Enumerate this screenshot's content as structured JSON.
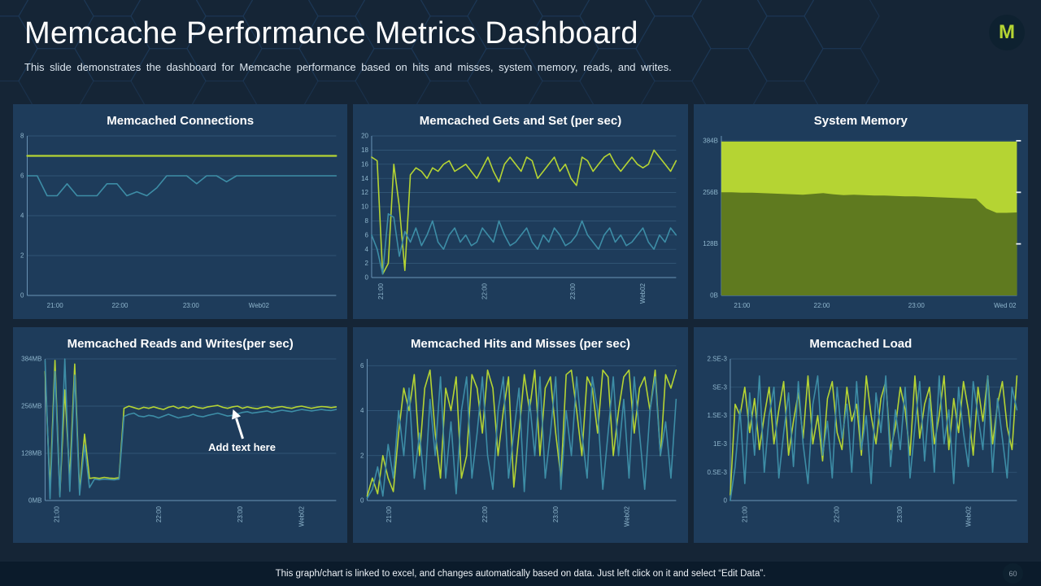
{
  "header": {
    "title": "Memcache Performance Metrics Dashboard",
    "subtitle": "This slide demonstrates the dashboard for Memcache performance based on hits and misses, system memory, reads, and writes.",
    "logo_letter": "M"
  },
  "footer": {
    "note": "This graph/chart is linked to excel, and changes automatically based on data. Just left click on it and select “Edit Data”.",
    "page_number": "60"
  },
  "colors": {
    "background": "#152536",
    "panel": "#1e3c5b",
    "accent_green": "#b5d433",
    "line_teal": "#3d8da6",
    "area_olive": "#5f7a1f",
    "grid": "#3b6384",
    "axis": "#6a93b5",
    "axis_label": "#8fb6cd",
    "footer_bg": "#0b1b2b"
  },
  "chart_data": [
    {
      "type": "line",
      "title": "Memcached Connections",
      "ylim": [
        0,
        8
      ],
      "yticks": [
        0,
        2,
        4,
        6,
        8
      ],
      "ytick_labels": [
        "0",
        "2",
        "4",
        "6",
        "8"
      ],
      "xtick_labels": [
        "21:00",
        "22:00",
        "23:00",
        "Web02"
      ],
      "xtick_pos": [
        0.09,
        0.3,
        0.53,
        0.75
      ],
      "x_rotated": false,
      "grid": "horizontal",
      "legend": "none",
      "series": [
        {
          "name": "green-line",
          "color": "#b5d433",
          "width": 2.2,
          "values": [
            7,
            7,
            7,
            7,
            7,
            7,
            7,
            7
          ]
        },
        {
          "name": "teal-line",
          "color": "#3d8da6",
          "values": [
            6,
            6,
            5,
            5,
            5.6,
            5,
            5,
            5,
            5.6,
            5.6,
            5,
            5.2,
            5,
            5.4,
            6,
            6,
            6,
            5.6,
            6,
            6,
            5.7,
            6,
            6,
            6,
            6,
            6,
            6,
            6,
            6,
            6,
            6,
            6
          ]
        }
      ]
    },
    {
      "type": "line",
      "title": "Memcached Gets and Set (per sec)",
      "ylim": [
        0,
        20
      ],
      "yticks": [
        0,
        2,
        4,
        6,
        8,
        10,
        12,
        14,
        16,
        18,
        20
      ],
      "ytick_labels": [
        "0",
        "2",
        "4",
        "6",
        "8",
        "10",
        "12",
        "14",
        "16",
        "18",
        "20"
      ],
      "xtick_labels": [
        "21:00",
        "22:00",
        "23:00",
        "Web02"
      ],
      "xtick_pos": [
        0.03,
        0.37,
        0.66,
        0.89
      ],
      "x_rotated": true,
      "grid": "horizontal",
      "legend": "none",
      "series": [
        {
          "name": "gets",
          "color": "#b5d433",
          "values": [
            17,
            16.5,
            0.5,
            2,
            16,
            10,
            1,
            14.5,
            15.5,
            15,
            14,
            15.5,
            15,
            16,
            16.5,
            15,
            15.5,
            16,
            15,
            14,
            15.5,
            17,
            15,
            13.5,
            16,
            17,
            16,
            15,
            17,
            16.5,
            14,
            15,
            16,
            17,
            15,
            16,
            14,
            13,
            17,
            16.5,
            15,
            16,
            17,
            17.5,
            16,
            15,
            16,
            17,
            16,
            15.5,
            16,
            18,
            17,
            16,
            15,
            16.5
          ]
        },
        {
          "name": "set",
          "color": "#3d8da6",
          "values": [
            6,
            4,
            0.5,
            9,
            8.5,
            3,
            6.5,
            5,
            7,
            4.5,
            6,
            8,
            5,
            4,
            6,
            7,
            5,
            6,
            4.5,
            5,
            7,
            6,
            5,
            8,
            6,
            4.5,
            5,
            6,
            7,
            5,
            4,
            6,
            5,
            7,
            6,
            4.5,
            5,
            6,
            8,
            6,
            5,
            4,
            6,
            7,
            5,
            6,
            4.5,
            5,
            6,
            7,
            5,
            4,
            6,
            5,
            7,
            6
          ]
        }
      ]
    },
    {
      "type": "stacked-area",
      "title": "System Memory",
      "ylim": [
        0,
        396
      ],
      "yticks": [
        0,
        128,
        256,
        384
      ],
      "ytick_labels": [
        "0B",
        "128B",
        "256B",
        "384B"
      ],
      "xtick_labels": [
        "21:00",
        "22:00",
        "23:00",
        "Wed 02"
      ],
      "xtick_pos": [
        0.07,
        0.34,
        0.66,
        0.96
      ],
      "x_rotated": false,
      "right_ticks": true,
      "grid": "horizontal",
      "legend": "none",
      "series": [
        {
          "name": "memory-used-dark",
          "color": "#5f7a1f",
          "values": [
            256,
            256,
            255,
            255,
            254,
            253,
            252,
            251,
            250,
            252,
            254,
            251,
            249,
            250,
            249,
            248,
            248,
            247,
            246,
            246,
            245,
            244,
            243,
            242,
            241,
            240,
            216,
            205,
            205,
            206
          ]
        },
        {
          "name": "memory-total-light",
          "color": "#b5d433",
          "values": [
            382,
            382,
            382,
            382
          ]
        }
      ]
    },
    {
      "type": "line",
      "title": "Memcached Reads and Writes(per sec)",
      "ylim": [
        0,
        384
      ],
      "yticks": [
        0,
        128,
        256,
        384
      ],
      "ytick_labels": [
        "0MB",
        "128MB",
        "256MB",
        "384MB"
      ],
      "xtick_labels": [
        "21:00",
        "22:00",
        "23:00",
        "Web02"
      ],
      "xtick_pos": [
        0.04,
        0.39,
        0.67,
        0.88
      ],
      "x_rotated": true,
      "grid": "horizontal",
      "legend": "none",
      "annotation": {
        "text": "Add text here"
      },
      "series": [
        {
          "name": "reads",
          "color": "#b5d433",
          "values": [
            350,
            30,
            380,
            15,
            300,
            60,
            370,
            25,
            180,
            60,
            62,
            60,
            63,
            61,
            60,
            62,
            250,
            256,
            252,
            248,
            253,
            250,
            254,
            250,
            247,
            253,
            256,
            250,
            254,
            250,
            256,
            252,
            250,
            254,
            256,
            258,
            253,
            250,
            254,
            256,
            250,
            254,
            251,
            249,
            253,
            255,
            250,
            253,
            255,
            252,
            250,
            254,
            256,
            253,
            250,
            253,
            255,
            254,
            252,
            254
          ]
        },
        {
          "name": "writes",
          "color": "#3d8da6",
          "values": [
            380,
            5,
            350,
            10,
            384,
            25,
            340,
            15,
            150,
            35,
            58,
            56,
            58,
            57,
            56,
            58,
            228,
            234,
            237,
            229,
            227,
            231,
            229,
            224,
            229,
            234,
            229,
            224,
            227,
            229,
            234,
            229,
            227,
            231,
            234,
            237,
            233,
            229,
            231,
            235,
            239,
            241,
            237,
            239,
            241,
            243,
            239,
            242,
            245,
            243,
            241,
            244,
            247,
            245,
            243,
            245,
            247,
            245,
            244,
            247
          ]
        }
      ]
    },
    {
      "type": "line",
      "title": "Memcached Hits and Misses (per sec)",
      "ylim": [
        0,
        6.3
      ],
      "yticks": [
        0,
        2,
        4,
        6
      ],
      "ytick_labels": [
        "0",
        "2",
        "4",
        "6"
      ],
      "xtick_labels": [
        "21:00",
        "22:00",
        "23:00",
        "Web02"
      ],
      "xtick_pos": [
        0.07,
        0.38,
        0.61,
        0.84
      ],
      "x_rotated": true,
      "grid": "horizontal",
      "legend": "none",
      "series": [
        {
          "name": "hits",
          "color": "#b5d433",
          "values": [
            0.2,
            1,
            0.3,
            2,
            1,
            0.4,
            3,
            5,
            4,
            5.6,
            2,
            5,
            5.8,
            3,
            1,
            5,
            4,
            5.5,
            1,
            2,
            5.6,
            5,
            3,
            5.8,
            5,
            2,
            4,
            5.5,
            0.6,
            3,
            5.6,
            4,
            5.8,
            2,
            5,
            5.5,
            3,
            1,
            5.6,
            5.8,
            4,
            2,
            5.5,
            5,
            3,
            5.8,
            5.5,
            2,
            4,
            5.5,
            5.8,
            3,
            5,
            5.5,
            4,
            5.8,
            2,
            5.6,
            5,
            5.8
          ]
        },
        {
          "name": "misses",
          "color": "#3d8da6",
          "values": [
            0.1,
            0.5,
            1.5,
            0.2,
            2.5,
            1,
            4,
            2,
            5,
            1,
            3,
            0.5,
            4.5,
            2,
            5.5,
            1,
            3.5,
            0.3,
            4,
            5.5,
            1,
            3,
            5.5,
            2,
            0.5,
            4,
            5.5,
            1,
            3,
            5,
            0.4,
            4.5,
            2,
            5.5,
            1,
            3,
            5.5,
            0.5,
            4,
            2,
            5.5,
            3,
            1,
            5.5,
            4,
            0.5,
            3,
            5.5,
            2,
            4.5,
            1,
            5.5,
            3,
            0.5,
            4,
            5.5,
            2,
            3.5,
            1,
            4.5
          ]
        }
      ]
    },
    {
      "type": "line",
      "title": "Memcached Load",
      "ylim": [
        0,
        2.5
      ],
      "yticks": [
        0,
        0.5,
        1,
        1.5,
        2,
        2.5
      ],
      "ytick_labels": [
        "0",
        "0.SE-3",
        "1E-3",
        "1.SE-3",
        "SE-3",
        "2.SE-3"
      ],
      "xtick_labels": [
        "21:00",
        "22:00",
        "23:00",
        "Web02"
      ],
      "xtick_pos": [
        0.05,
        0.37,
        0.59,
        0.83
      ],
      "x_rotated": true,
      "grid": "horizontal",
      "legend": "none",
      "series": [
        {
          "name": "green-line",
          "color": "#b5d433",
          "values": [
            0.1,
            1.7,
            1.5,
            2.0,
            1.2,
            1.8,
            0.9,
            1.5,
            2.0,
            1.0,
            1.6,
            2.1,
            0.8,
            1.4,
            1.9,
            1.1,
            2.2,
            1.0,
            1.5,
            0.7,
            1.8,
            2.1,
            1.2,
            0.9,
            2.0,
            1.4,
            1.7,
            0.8,
            2.2,
            1.5,
            1.0,
            1.8,
            2.1,
            0.9,
            1.3,
            2.0,
            1.6,
            0.8,
            2.2,
            1.1,
            1.7,
            2.0,
            1.0,
            1.5,
            2.2,
            0.9,
            1.8,
            1.2,
            2.1,
            1.6,
            0.8,
            2.0,
            1.4,
            2.2,
            1.0,
            1.7,
            2.1,
            1.3,
            0.9,
            2.2
          ]
        },
        {
          "name": "teal-line",
          "color": "#3d8da6",
          "values": [
            0,
            0.6,
            1.6,
            0.3,
            1.9,
            0.8,
            2.2,
            0.5,
            1.5,
            2.0,
            0.4,
            1.2,
            1.9,
            0.6,
            2.1,
            1.0,
            0.3,
            1.7,
            2.2,
            0.8,
            1.4,
            0.4,
            2.0,
            1.1,
            1.7,
            0.5,
            2.1,
            0.9,
            1.5,
            0.3,
            1.9,
            1.2,
            2.2,
            0.6,
            1.6,
            0.9,
            2.0,
            0.4,
            1.3,
            2.1,
            0.7,
            1.8,
            0.5,
            2.2,
            1.0,
            1.6,
            0.3,
            2.0,
            1.2,
            0.6,
            2.1,
            1.5,
            0.9,
            2.2,
            0.5,
            1.8,
            1.1,
            0.4,
            2.0,
            1.6
          ]
        }
      ]
    }
  ]
}
